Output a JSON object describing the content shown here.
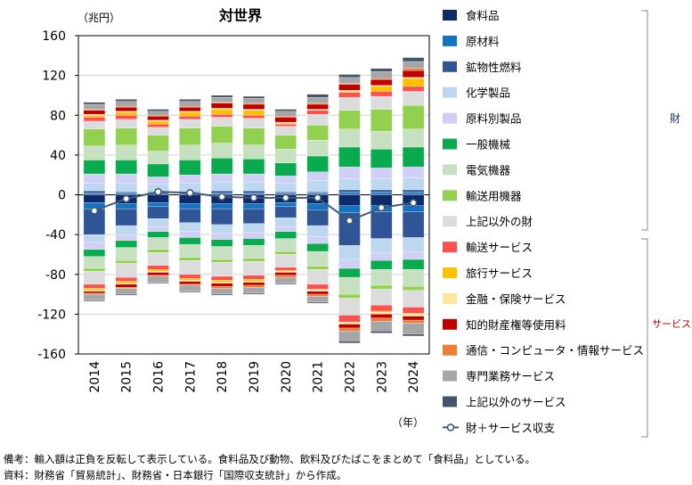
{
  "chart_data": {
    "type": "stacked-bar-with-line",
    "title": "対世界",
    "ylabel": "（兆円）",
    "xlabel": "（年）",
    "ylim": [
      -160,
      160
    ],
    "yticks": [
      160,
      120,
      80,
      40,
      0,
      -40,
      -80,
      -120,
      -160
    ],
    "categories": [
      "2014",
      "2015",
      "2016",
      "2017",
      "2018",
      "2019",
      "2020",
      "2021",
      "2022",
      "2023",
      "2024"
    ],
    "positive_series": [
      {
        "name": "食料品",
        "color": "#0d2a6b",
        "values": [
          1,
          1,
          1,
          1,
          1,
          1,
          1,
          1,
          1,
          1,
          1
        ]
      },
      {
        "name": "原材料",
        "color": "#1173c2",
        "values": [
          1,
          1,
          1,
          1,
          1,
          1,
          1,
          1,
          2,
          2,
          2
        ]
      },
      {
        "name": "鉱物性燃料",
        "color": "#2f5597",
        "values": [
          2,
          1,
          1,
          1,
          2,
          2,
          1,
          1,
          2,
          2,
          2
        ]
      },
      {
        "name": "化学製品",
        "color": "#bdd7ee",
        "values": [
          8,
          9,
          8,
          9,
          9,
          9,
          9,
          11,
          11,
          11,
          12
        ]
      },
      {
        "name": "原料別製品",
        "color": "#cfcff7",
        "values": [
          9,
          9,
          7,
          8,
          8,
          8,
          7,
          9,
          12,
          11,
          11
        ]
      },
      {
        "name": "一般機械",
        "color": "#0aab4f",
        "values": [
          14,
          14,
          13,
          15,
          16,
          15,
          13,
          16,
          20,
          19,
          20
        ]
      },
      {
        "name": "電気機器",
        "color": "#c6e0c0",
        "values": [
          14,
          15,
          13,
          15,
          15,
          14,
          14,
          16,
          18,
          18,
          18
        ]
      },
      {
        "name": "輸送用機器",
        "color": "#92d050",
        "values": [
          17,
          17,
          16,
          17,
          17,
          17,
          14,
          15,
          19,
          22,
          24
        ]
      },
      {
        "name": "上記以外の財",
        "color": "#dcdcdc",
        "values": [
          8,
          9,
          8,
          9,
          9,
          10,
          9,
          11,
          13,
          13,
          14
        ]
      },
      {
        "name": "輸送サービス",
        "color": "#ff5050",
        "values": [
          4,
          4,
          3,
          3,
          3,
          3,
          2,
          4,
          5,
          5,
          5
        ]
      },
      {
        "name": "旅行サービス",
        "color": "#ffc000",
        "values": [
          2,
          3,
          3,
          4,
          5,
          5,
          1,
          0,
          1,
          5,
          8
        ]
      },
      {
        "name": "金融・保険サービス",
        "color": "#ffe699",
        "values": [
          1,
          1,
          1,
          1,
          1,
          1,
          1,
          1,
          1,
          1,
          1
        ]
      },
      {
        "name": "知的財産権等使用料",
        "color": "#c00000",
        "values": [
          4,
          4,
          4,
          4,
          5,
          5,
          5,
          5,
          6,
          6,
          7
        ]
      },
      {
        "name": "通信・コンピュータ・情報サービス",
        "color": "#ed7d31",
        "values": [
          1,
          1,
          1,
          1,
          1,
          1,
          1,
          1,
          1,
          1,
          2
        ]
      },
      {
        "name": "専門業務サービス",
        "color": "#a6a6a6",
        "values": [
          5,
          5,
          4,
          5,
          5,
          5,
          5,
          6,
          6,
          7,
          7
        ]
      },
      {
        "name": "上記以外のサービス",
        "color": "#44546a",
        "values": [
          2,
          2,
          2,
          2,
          2,
          2,
          2,
          3,
          3,
          3,
          4
        ]
      }
    ],
    "negative_series": [
      {
        "name": "食料品",
        "color": "#0d2a6b",
        "values": [
          -8,
          -9,
          -8,
          -9,
          -9,
          -9,
          -8,
          -9,
          -11,
          -11,
          -11
        ]
      },
      {
        "name": "原材料",
        "color": "#1173c2",
        "values": [
          -6,
          -5,
          -4,
          -5,
          -5,
          -5,
          -4,
          -6,
          -7,
          -6,
          -6
        ]
      },
      {
        "name": "鉱物性燃料",
        "color": "#2f5597",
        "values": [
          -26,
          -17,
          -12,
          -14,
          -16,
          -15,
          -11,
          -16,
          -33,
          -27,
          -26
        ]
      },
      {
        "name": "化学製品",
        "color": "#bdd7ee",
        "values": [
          -8,
          -9,
          -8,
          -9,
          -9,
          -9,
          -9,
          -11,
          -14,
          -14,
          -14
        ]
      },
      {
        "name": "原料別製品",
        "color": "#cfcff7",
        "values": [
          -7,
          -6,
          -5,
          -6,
          -6,
          -6,
          -5,
          -7,
          -9,
          -8,
          -8
        ]
      },
      {
        "name": "一般機械",
        "color": "#0aab4f",
        "values": [
          -7,
          -7,
          -6,
          -7,
          -7,
          -7,
          -7,
          -8,
          -9,
          -9,
          -10
        ]
      },
      {
        "name": "電気機器",
        "color": "#c6e0c0",
        "values": [
          -12,
          -13,
          -12,
          -13,
          -13,
          -13,
          -13,
          -15,
          -17,
          -16,
          -17
        ]
      },
      {
        "name": "輸送用機器",
        "color": "#92d050",
        "values": [
          -3,
          -3,
          -3,
          -3,
          -3,
          -3,
          -3,
          -3,
          -4,
          -4,
          -4
        ]
      },
      {
        "name": "上記以外の財",
        "color": "#dcdcdc",
        "values": [
          -13,
          -14,
          -13,
          -14,
          -14,
          -14,
          -13,
          -15,
          -17,
          -16,
          -17
        ]
      },
      {
        "name": "輸送サービス",
        "color": "#ff5050",
        "values": [
          -4,
          -4,
          -4,
          -4,
          -4,
          -4,
          -3,
          -5,
          -7,
          -6,
          -6
        ]
      },
      {
        "name": "旅行サービス",
        "color": "#ffc000",
        "values": [
          -2,
          -2,
          -2,
          -2,
          -2,
          -2,
          -1,
          0,
          0,
          -1,
          -1
        ]
      },
      {
        "name": "金融・保険サービス",
        "color": "#ffe699",
        "values": [
          -1,
          -1,
          -1,
          -1,
          -1,
          -1,
          -1,
          -2,
          -2,
          -2,
          -2
        ]
      },
      {
        "name": "知的財産権等使用料",
        "color": "#c00000",
        "values": [
          -2,
          -3,
          -3,
          -3,
          -3,
          -3,
          -3,
          -3,
          -4,
          -4,
          -4
        ]
      },
      {
        "name": "通信・コンピュータ・情報サービス",
        "color": "#ed7d31",
        "values": [
          -1,
          -1,
          -1,
          -1,
          -2,
          -2,
          -2,
          -2,
          -3,
          -3,
          -3
        ]
      },
      {
        "name": "専門業務サービス",
        "color": "#a6a6a6",
        "values": [
          -6,
          -6,
          -6,
          -6,
          -6,
          -6,
          -6,
          -6,
          -10,
          -10,
          -11
        ]
      },
      {
        "name": "上記以外のサービス",
        "color": "#44546a",
        "values": [
          -1,
          -1,
          -1,
          -1,
          -1,
          -1,
          -1,
          -1,
          -2,
          -2,
          -2
        ]
      }
    ],
    "balance_line": {
      "name": "財＋サービス収支",
      "values": [
        -16,
        -4,
        3,
        2,
        -2,
        -3,
        -3,
        -3,
        -26,
        -13,
        -8
      ]
    },
    "legend": [
      {
        "name": "食料品",
        "color": "#0d2a6b"
      },
      {
        "name": "原材料",
        "color": "#1173c2"
      },
      {
        "name": "鉱物性燃料",
        "color": "#2f5597"
      },
      {
        "name": "化学製品",
        "color": "#bdd7ee"
      },
      {
        "name": "原料別製品",
        "color": "#cfcff7"
      },
      {
        "name": "一般機械",
        "color": "#0aab4f"
      },
      {
        "name": "電気機器",
        "color": "#c6e0c0"
      },
      {
        "name": "輸送用機器",
        "color": "#92d050"
      },
      {
        "name": "上記以外の財",
        "color": "#dcdcdc"
      },
      {
        "name": "輸送サービス",
        "color": "#ff5050"
      },
      {
        "name": "旅行サービス",
        "color": "#ffc000"
      },
      {
        "name": "金融・保険サービス",
        "color": "#ffe699"
      },
      {
        "name": "知的財産権等使用料",
        "color": "#c00000"
      },
      {
        "name": "通信・コンピュータ・情報サービス",
        "color": "#ed7d31"
      },
      {
        "name": "専門業務サービス",
        "color": "#a6a6a6"
      },
      {
        "name": "上記以外のサービス",
        "color": "#44546a"
      },
      {
        "name": "財＋サービス収支",
        "color": "#3f5a7a",
        "line": true
      }
    ],
    "brackets": {
      "goods_label": "財",
      "services_label": "サービス",
      "goods_color": "#1f3864",
      "services_color": "#c00000"
    }
  },
  "notes": {
    "line1": "備考：輸入額は正負を反転して表示している。食料品及び動物、飲料及びたばこをまとめて「食料品」としている。",
    "line2": "資料：財務省「貿易統計」、財務省・日本銀行「国際収支統計」から作成。"
  }
}
